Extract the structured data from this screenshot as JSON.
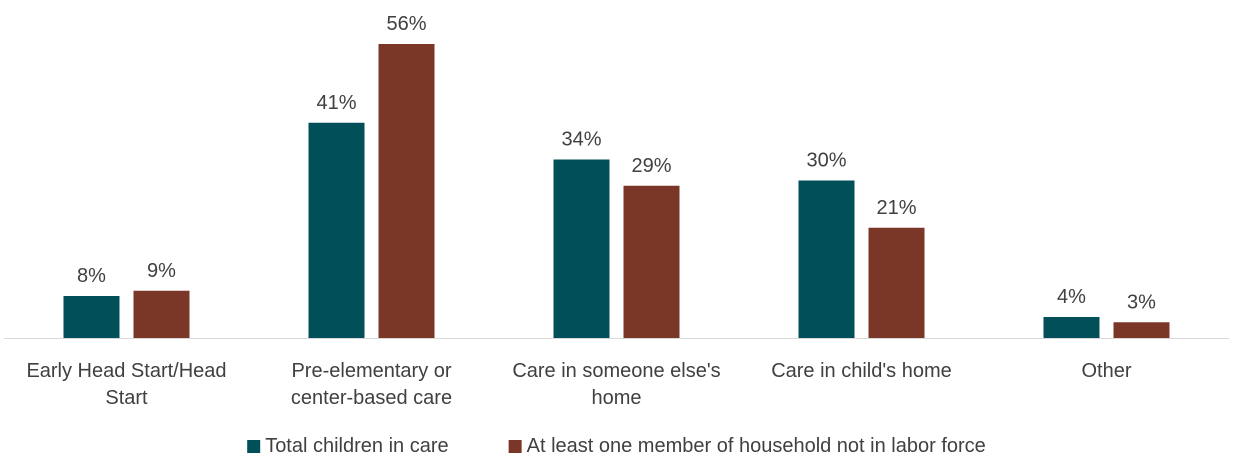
{
  "chart_data": {
    "type": "bar",
    "title": "",
    "xlabel": "",
    "ylabel": "",
    "ylim": [
      0,
      58
    ],
    "grid": false,
    "legend_position": "bottom-center",
    "categories": [
      [
        "Early Head Start/Head",
        "Start"
      ],
      [
        "Pre-elementary or",
        "center-based care"
      ],
      [
        "Care in someone else's",
        "home"
      ],
      [
        "Care in child's home"
      ],
      [
        "Other"
      ]
    ],
    "series": [
      {
        "name": "Total children in care",
        "color": "#004f59",
        "values": [
          8,
          41,
          34,
          30,
          4
        ],
        "labels": [
          "8%",
          "41%",
          "34%",
          "30%",
          "4%"
        ]
      },
      {
        "name": "At least one member of household not in labor force",
        "color": "#7a3728",
        "values": [
          9,
          56,
          29,
          21,
          3
        ],
        "labels": [
          "9%",
          "56%",
          "29%",
          "21%",
          "3%"
        ]
      }
    ]
  }
}
